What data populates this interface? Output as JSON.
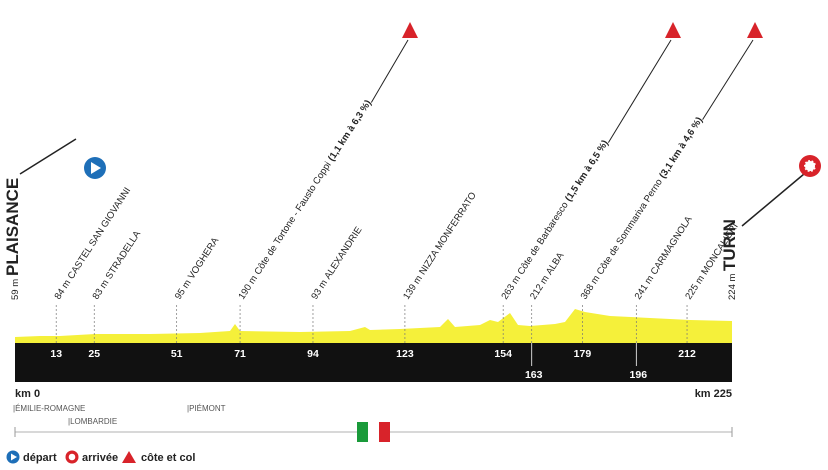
{
  "start": {
    "km_label": "km 0",
    "elevation": "59 m",
    "name": "PLAISANCE"
  },
  "finish": {
    "km_label": "km 225",
    "elevation": "224 m",
    "name": "TURIN"
  },
  "waypoints": [
    {
      "km": 13,
      "elevation": "84 m",
      "name": "CASTEL SAN GIOVANNI"
    },
    {
      "km": 25,
      "elevation": "83 m",
      "name": "STRADELLA"
    },
    {
      "km": 51,
      "elevation": "95 m",
      "name": "VOGHERA"
    },
    {
      "km": 71,
      "elevation": "190 m",
      "name": "Côte de Tortone - Fausto Coppi",
      "details": "(1,1 km à 6,3 %)"
    },
    {
      "km": 94,
      "elevation": "93 m",
      "name": "ALEXANDRIE"
    },
    {
      "km": 123,
      "elevation": "139 m",
      "name": "NIZZA MONFERRATO"
    },
    {
      "km": 154,
      "elevation": "263 m",
      "name": "Côte de Barbaresco",
      "details": "(1,5 km à 6,5 %)"
    },
    {
      "km": 163,
      "elevation": "212 m",
      "name": "ALBA"
    },
    {
      "km": 179,
      "elevation": "368 m",
      "name": "Côte de Sommariva Perno",
      "details": "(3,1 km à 4,6 %)"
    },
    {
      "km": 196,
      "elevation": "241 m",
      "name": "CARMAGNOLA"
    },
    {
      "km": 212,
      "elevation": "225 m",
      "name": "MONCALIERI"
    }
  ],
  "regions": [
    "|ÉMILIE-ROMAGNE",
    "|LOMBARDIE",
    "|PIÉMONT"
  ],
  "legend": {
    "start": "départ",
    "finish": "arrivée",
    "climb": "côte et col"
  }
}
